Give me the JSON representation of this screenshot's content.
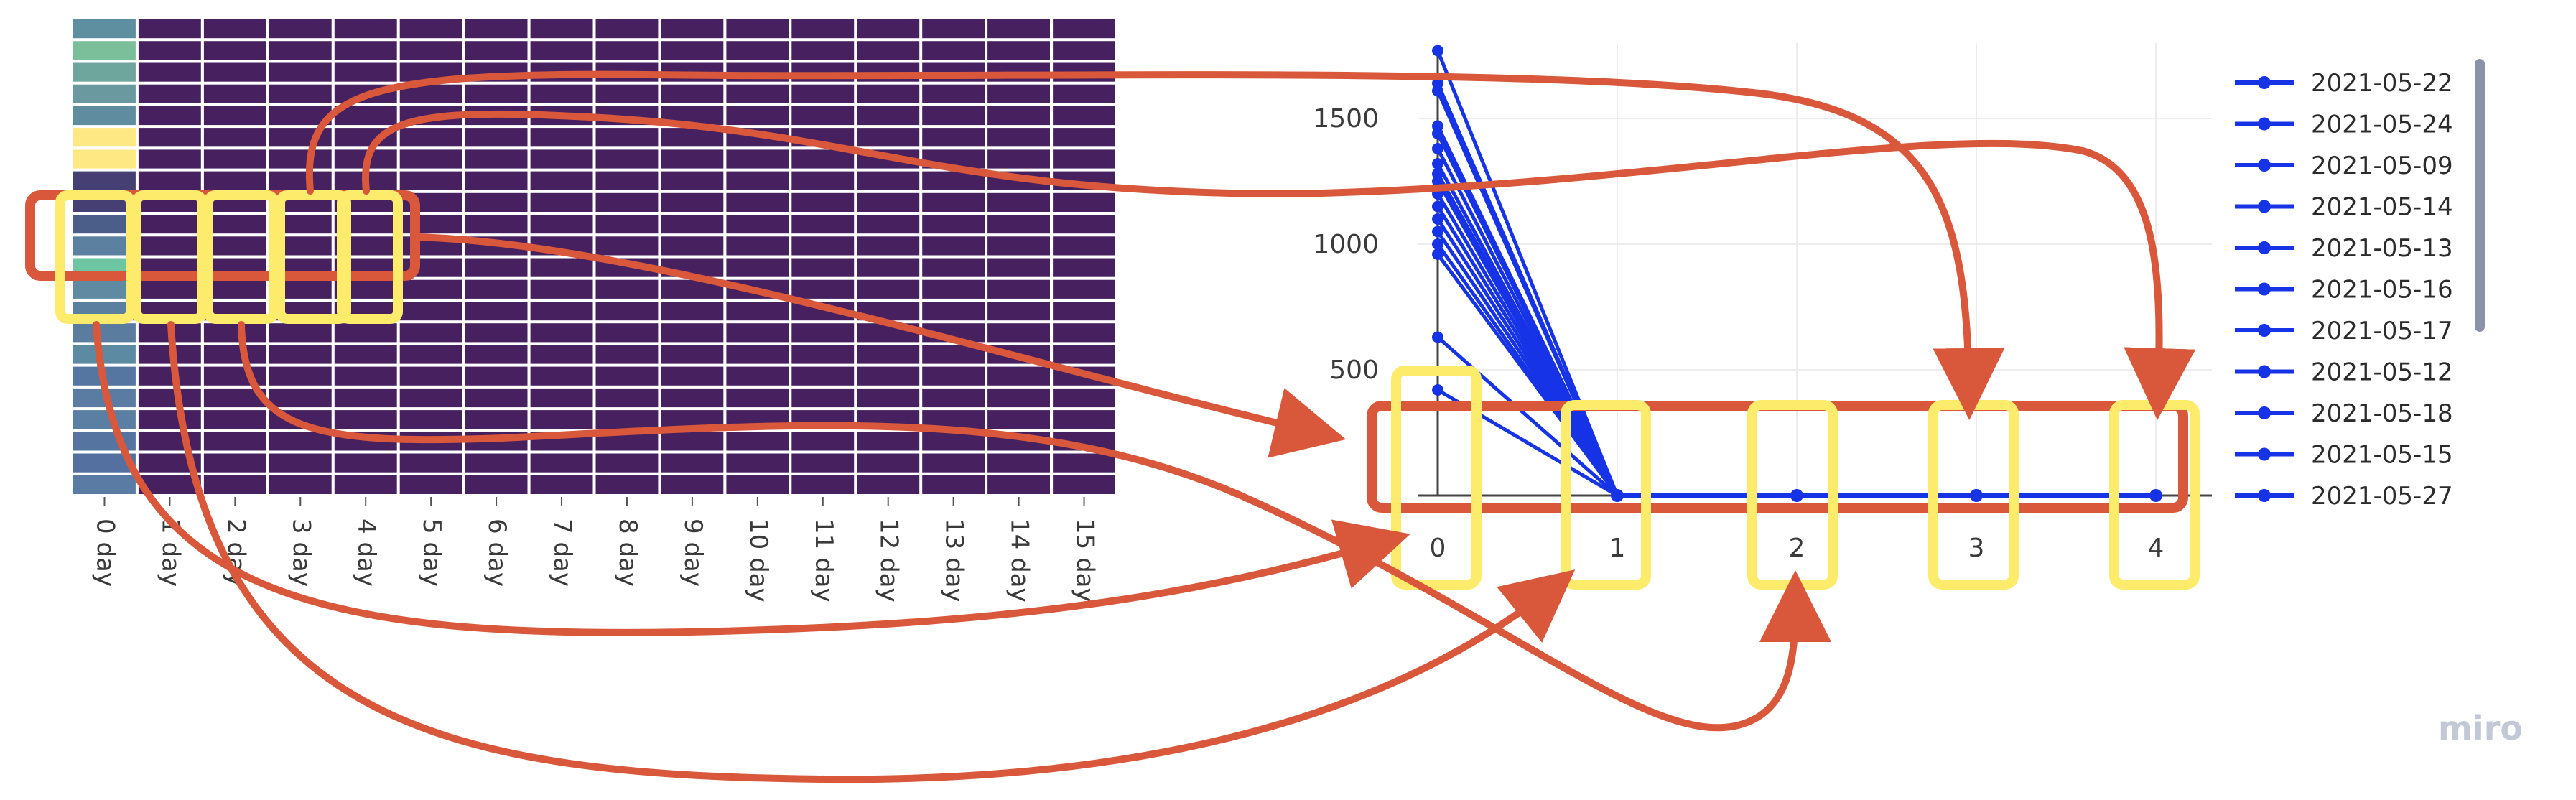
{
  "heatmap": {
    "x_labels": [
      "0 day",
      "1 day",
      "2 day",
      "3 day",
      "4 day",
      "5 day",
      "6 day",
      "7 day",
      "8 day",
      "9 day",
      "10 day",
      "11 day",
      "12 day",
      "13 day",
      "14 day",
      "15 day"
    ],
    "first_column_colors": [
      "#5d8fa0",
      "#7bbf9a",
      "#6ea59c",
      "#6a9aa0",
      "#5f8d9f",
      "#fde884",
      "#fde884",
      "#453f74",
      "#453f74",
      "#4b5d89",
      "#5b80a0",
      "#6dc5a1",
      "#5f8aa1",
      "#5b7f9f",
      "#5a7c9e",
      "#5d8aa3",
      "#5576a1",
      "#5a7ca2",
      "#5b7ea3",
      "#5674a0",
      "#5470a0",
      "#5a7ba3"
    ],
    "cell_color": "#46205f",
    "gap_color": "#ffffff"
  },
  "line_chart": {
    "y_ticks": [
      "500",
      "1000",
      "1500"
    ],
    "x_ticks": [
      "0",
      "1",
      "2",
      "3",
      "4"
    ],
    "line_color": "#1733e6"
  },
  "legend": {
    "items": [
      "2021-05-22",
      "2021-05-24",
      "2021-05-09",
      "2021-05-14",
      "2021-05-13",
      "2021-05-16",
      "2021-05-17",
      "2021-05-12",
      "2021-05-18",
      "2021-05-15",
      "2021-05-27"
    ],
    "color": "#1733e6"
  },
  "chart_data": [
    {
      "type": "heatmap",
      "x_categories": [
        "0 day",
        "1 day",
        "2 day",
        "3 day",
        "4 day",
        "5 day",
        "6 day",
        "7 day",
        "8 day",
        "9 day",
        "10 day",
        "11 day",
        "12 day",
        "13 day",
        "14 day",
        "15 day"
      ],
      "note_values": "first column has varied values, remaining cells near minimum"
    },
    {
      "type": "line",
      "x": [
        0,
        1,
        2,
        3,
        4
      ],
      "ylim": [
        0,
        1800
      ],
      "series_start_values": [
        1770,
        1640,
        1610,
        1470,
        1440,
        1380,
        1320,
        1280,
        1250,
        1200,
        1150,
        1100,
        1050,
        1000,
        960,
        630,
        420
      ],
      "series_value_after_0": 0
    }
  ],
  "annotations": {
    "highlight_red": "#d9573a",
    "highlight_yellow": "#fdeb6b",
    "watermark": "miro"
  }
}
